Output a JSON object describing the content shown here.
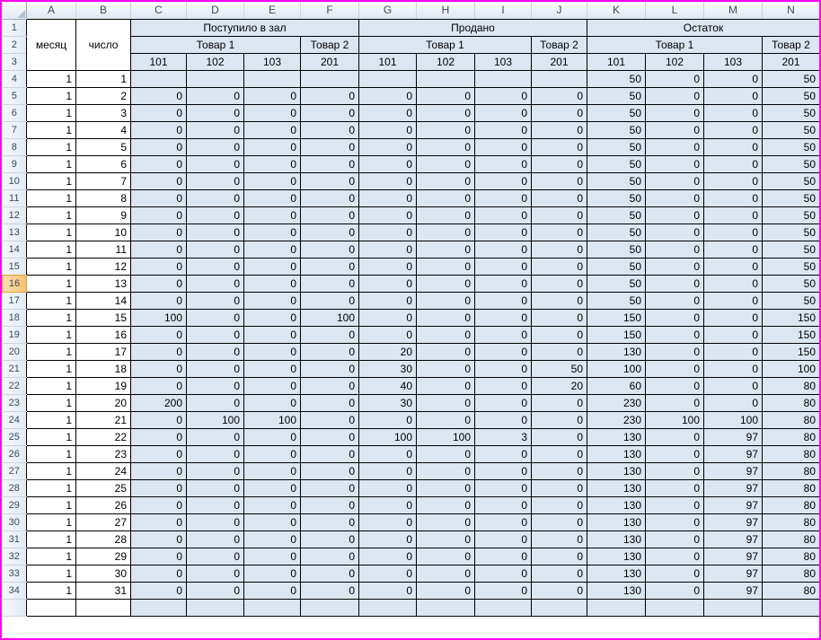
{
  "grid": {
    "column_letters": [
      "A",
      "B",
      "C",
      "D",
      "E",
      "F",
      "G",
      "H",
      "I",
      "J",
      "K",
      "L",
      "M",
      "N"
    ],
    "row_headers": [
      "1",
      "2",
      "3",
      "4",
      "5",
      "6",
      "7",
      "8",
      "9",
      "10",
      "11",
      "12",
      "13",
      "14",
      "15",
      "16",
      "17",
      "18",
      "19",
      "20",
      "21",
      "22",
      "23",
      "24",
      "25",
      "26",
      "27",
      "28",
      "29",
      "30",
      "31",
      "32",
      "33",
      "34"
    ],
    "selected_row": 16,
    "colors": {
      "frame_border": "#FF00F0",
      "data_fill": "#DCE6F1",
      "selected_header_fill": "#F9BE6B",
      "header_text": "#3A4A61"
    }
  },
  "header": {
    "month_label": "месяц",
    "day_label": "число",
    "groups": [
      {
        "label": "Поступило в зал"
      },
      {
        "label": "Продано"
      },
      {
        "label": "Остаток"
      }
    ],
    "subgroups": [
      {
        "label": "Товар 1"
      },
      {
        "label": "Товар 2"
      },
      {
        "label": "Товар 1"
      },
      {
        "label": "Товар 2"
      },
      {
        "label": "Товар 1"
      },
      {
        "label": "Товар 2"
      }
    ],
    "codes": [
      "101",
      "102",
      "103",
      "201",
      "101",
      "102",
      "103",
      "201",
      "101",
      "102",
      "103",
      "201"
    ]
  },
  "rows": [
    {
      "month": "1",
      "day": "1",
      "values": [
        "",
        "",
        "",
        "",
        "",
        "",
        "",
        "",
        "50",
        "0",
        "0",
        "50"
      ]
    },
    {
      "month": "1",
      "day": "2",
      "values": [
        "0",
        "0",
        "0",
        "0",
        "0",
        "0",
        "0",
        "0",
        "50",
        "0",
        "0",
        "50"
      ]
    },
    {
      "month": "1",
      "day": "3",
      "values": [
        "0",
        "0",
        "0",
        "0",
        "0",
        "0",
        "0",
        "0",
        "50",
        "0",
        "0",
        "50"
      ]
    },
    {
      "month": "1",
      "day": "4",
      "values": [
        "0",
        "0",
        "0",
        "0",
        "0",
        "0",
        "0",
        "0",
        "50",
        "0",
        "0",
        "50"
      ]
    },
    {
      "month": "1",
      "day": "5",
      "values": [
        "0",
        "0",
        "0",
        "0",
        "0",
        "0",
        "0",
        "0",
        "50",
        "0",
        "0",
        "50"
      ]
    },
    {
      "month": "1",
      "day": "6",
      "values": [
        "0",
        "0",
        "0",
        "0",
        "0",
        "0",
        "0",
        "0",
        "50",
        "0",
        "0",
        "50"
      ]
    },
    {
      "month": "1",
      "day": "7",
      "values": [
        "0",
        "0",
        "0",
        "0",
        "0",
        "0",
        "0",
        "0",
        "50",
        "0",
        "0",
        "50"
      ]
    },
    {
      "month": "1",
      "day": "8",
      "values": [
        "0",
        "0",
        "0",
        "0",
        "0",
        "0",
        "0",
        "0",
        "50",
        "0",
        "0",
        "50"
      ]
    },
    {
      "month": "1",
      "day": "9",
      "values": [
        "0",
        "0",
        "0",
        "0",
        "0",
        "0",
        "0",
        "0",
        "50",
        "0",
        "0",
        "50"
      ]
    },
    {
      "month": "1",
      "day": "10",
      "values": [
        "0",
        "0",
        "0",
        "0",
        "0",
        "0",
        "0",
        "0",
        "50",
        "0",
        "0",
        "50"
      ]
    },
    {
      "month": "1",
      "day": "11",
      "values": [
        "0",
        "0",
        "0",
        "0",
        "0",
        "0",
        "0",
        "0",
        "50",
        "0",
        "0",
        "50"
      ]
    },
    {
      "month": "1",
      "day": "12",
      "values": [
        "0",
        "0",
        "0",
        "0",
        "0",
        "0",
        "0",
        "0",
        "50",
        "0",
        "0",
        "50"
      ]
    },
    {
      "month": "1",
      "day": "13",
      "values": [
        "0",
        "0",
        "0",
        "0",
        "0",
        "0",
        "0",
        "0",
        "50",
        "0",
        "0",
        "50"
      ]
    },
    {
      "month": "1",
      "day": "14",
      "values": [
        "0",
        "0",
        "0",
        "0",
        "0",
        "0",
        "0",
        "0",
        "50",
        "0",
        "0",
        "50"
      ]
    },
    {
      "month": "1",
      "day": "15",
      "values": [
        "100",
        "0",
        "0",
        "100",
        "0",
        "0",
        "0",
        "0",
        "150",
        "0",
        "0",
        "150"
      ]
    },
    {
      "month": "1",
      "day": "16",
      "values": [
        "0",
        "0",
        "0",
        "0",
        "0",
        "0",
        "0",
        "0",
        "150",
        "0",
        "0",
        "150"
      ]
    },
    {
      "month": "1",
      "day": "17",
      "values": [
        "0",
        "0",
        "0",
        "0",
        "20",
        "0",
        "0",
        "0",
        "130",
        "0",
        "0",
        "150"
      ]
    },
    {
      "month": "1",
      "day": "18",
      "values": [
        "0",
        "0",
        "0",
        "0",
        "30",
        "0",
        "0",
        "50",
        "100",
        "0",
        "0",
        "100"
      ]
    },
    {
      "month": "1",
      "day": "19",
      "values": [
        "0",
        "0",
        "0",
        "0",
        "40",
        "0",
        "0",
        "20",
        "60",
        "0",
        "0",
        "80"
      ]
    },
    {
      "month": "1",
      "day": "20",
      "values": [
        "200",
        "0",
        "0",
        "0",
        "30",
        "0",
        "0",
        "0",
        "230",
        "0",
        "0",
        "80"
      ]
    },
    {
      "month": "1",
      "day": "21",
      "values": [
        "0",
        "100",
        "100",
        "0",
        "0",
        "0",
        "0",
        "0",
        "230",
        "100",
        "100",
        "80"
      ]
    },
    {
      "month": "1",
      "day": "22",
      "values": [
        "0",
        "0",
        "0",
        "0",
        "100",
        "100",
        "3",
        "0",
        "130",
        "0",
        "97",
        "80"
      ]
    },
    {
      "month": "1",
      "day": "23",
      "values": [
        "0",
        "0",
        "0",
        "0",
        "0",
        "0",
        "0",
        "0",
        "130",
        "0",
        "97",
        "80"
      ]
    },
    {
      "month": "1",
      "day": "24",
      "values": [
        "0",
        "0",
        "0",
        "0",
        "0",
        "0",
        "0",
        "0",
        "130",
        "0",
        "97",
        "80"
      ]
    },
    {
      "month": "1",
      "day": "25",
      "values": [
        "0",
        "0",
        "0",
        "0",
        "0",
        "0",
        "0",
        "0",
        "130",
        "0",
        "97",
        "80"
      ]
    },
    {
      "month": "1",
      "day": "26",
      "values": [
        "0",
        "0",
        "0",
        "0",
        "0",
        "0",
        "0",
        "0",
        "130",
        "0",
        "97",
        "80"
      ]
    },
    {
      "month": "1",
      "day": "27",
      "values": [
        "0",
        "0",
        "0",
        "0",
        "0",
        "0",
        "0",
        "0",
        "130",
        "0",
        "97",
        "80"
      ]
    },
    {
      "month": "1",
      "day": "28",
      "values": [
        "0",
        "0",
        "0",
        "0",
        "0",
        "0",
        "0",
        "0",
        "130",
        "0",
        "97",
        "80"
      ]
    },
    {
      "month": "1",
      "day": "29",
      "values": [
        "0",
        "0",
        "0",
        "0",
        "0",
        "0",
        "0",
        "0",
        "130",
        "0",
        "97",
        "80"
      ]
    },
    {
      "month": "1",
      "day": "30",
      "values": [
        "0",
        "0",
        "0",
        "0",
        "0",
        "0",
        "0",
        "0",
        "130",
        "0",
        "97",
        "80"
      ]
    },
    {
      "month": "1",
      "day": "31",
      "values": [
        "0",
        "0",
        "0",
        "0",
        "0",
        "0",
        "0",
        "0",
        "130",
        "0",
        "97",
        "80"
      ]
    }
  ]
}
